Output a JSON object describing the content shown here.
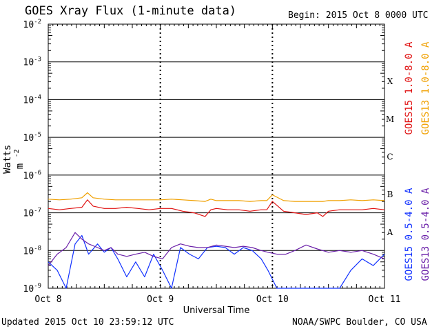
{
  "header": {
    "title": "GOES Xray Flux (1-minute data)",
    "begin": "Begin:  2015 Oct 8 0000 UTC"
  },
  "footer": {
    "updated": "Updated 2015 Oct 10 23:59:12 UTC",
    "credit": "NOAA/SWPC Boulder, CO USA"
  },
  "chart_data": {
    "type": "line",
    "title": "GOES Xray Flux (1-minute data)",
    "xlabel": "Universal Time",
    "ylabel_text": "Watts m",
    "ylabel_exp": "-2",
    "y_scale": "log",
    "ylim": [
      1e-09,
      0.01
    ],
    "x_unit": "days since 2015 Oct 8 0000 UTC",
    "xlim": [
      0,
      3
    ],
    "x_ticks": [
      {
        "value": 0,
        "label": "Oct 8"
      },
      {
        "value": 1,
        "label": "Oct 9"
      },
      {
        "value": 2,
        "label": "Oct 10"
      },
      {
        "value": 3,
        "label": "Oct 11"
      }
    ],
    "y_ticks": [
      {
        "exp": -9,
        "mantissa": "10",
        "sup": "-9"
      },
      {
        "exp": -8,
        "mantissa": "10",
        "sup": "-8"
      },
      {
        "exp": -7,
        "mantissa": "10",
        "sup": "-7"
      },
      {
        "exp": -6,
        "mantissa": "10",
        "sup": "-6"
      },
      {
        "exp": -5,
        "mantissa": "10",
        "sup": "-5"
      },
      {
        "exp": -4,
        "mantissa": "10",
        "sup": "-4"
      },
      {
        "exp": -3,
        "mantissa": "10",
        "sup": "-3"
      },
      {
        "exp": -2,
        "mantissa": "10",
        "sup": "-2"
      }
    ],
    "flare_classes": [
      {
        "label": "A",
        "exp": -8
      },
      {
        "label": "B",
        "exp": -7
      },
      {
        "label": "C",
        "exp": -6
      },
      {
        "label": "M",
        "exp": -5
      },
      {
        "label": "X",
        "exp": -4
      }
    ],
    "grid": true,
    "legend_position": "right-vertical",
    "series": [
      {
        "name": "GOES15 1.0-8.0 A",
        "color": "#e01010",
        "x": [
          0,
          0.1,
          0.2,
          0.3,
          0.35,
          0.4,
          0.5,
          0.6,
          0.7,
          0.8,
          0.9,
          1.0,
          1.1,
          1.2,
          1.3,
          1.4,
          1.45,
          1.5,
          1.6,
          1.7,
          1.8,
          1.9,
          1.95,
          2.0,
          2.1,
          2.2,
          2.3,
          2.4,
          2.45,
          2.5,
          2.6,
          2.7,
          2.8,
          2.9,
          3.0
        ],
        "y": [
          1.3e-07,
          1.2e-07,
          1.3e-07,
          1.4e-07,
          2.2e-07,
          1.5e-07,
          1.3e-07,
          1.3e-07,
          1.4e-07,
          1.3e-07,
          1.2e-07,
          1.3e-07,
          1.3e-07,
          1.1e-07,
          1e-07,
          8e-08,
          1.2e-07,
          1.3e-07,
          1.2e-07,
          1.2e-07,
          1.1e-07,
          1.2e-07,
          1.2e-07,
          2e-07,
          1.1e-07,
          1e-07,
          9e-08,
          1e-07,
          8e-08,
          1.1e-07,
          1.2e-07,
          1.2e-07,
          1.2e-07,
          1.3e-07,
          1.2e-07
        ]
      },
      {
        "name": "GOES13 1.0-8.0 A",
        "color": "#f0a000",
        "x": [
          0,
          0.1,
          0.2,
          0.3,
          0.35,
          0.4,
          0.5,
          0.6,
          0.7,
          0.8,
          0.9,
          1.0,
          1.1,
          1.2,
          1.3,
          1.4,
          1.45,
          1.5,
          1.6,
          1.7,
          1.8,
          1.9,
          1.95,
          2.0,
          2.1,
          2.2,
          2.3,
          2.4,
          2.45,
          2.5,
          2.6,
          2.7,
          2.8,
          2.9,
          3.0
        ],
        "y": [
          2.3e-07,
          2.2e-07,
          2.3e-07,
          2.5e-07,
          3.4e-07,
          2.5e-07,
          2.3e-07,
          2.2e-07,
          2.2e-07,
          2.2e-07,
          2.2e-07,
          2.2e-07,
          2.3e-07,
          2.2e-07,
          2.1e-07,
          2e-07,
          2.3e-07,
          2.1e-07,
          2.1e-07,
          2.1e-07,
          2e-07,
          2.1e-07,
          2.1e-07,
          3e-07,
          2.1e-07,
          2e-07,
          2e-07,
          2e-07,
          2e-07,
          2.1e-07,
          2.1e-07,
          2.2e-07,
          2.1e-07,
          2.2e-07,
          2.1e-07
        ]
      },
      {
        "name": "GOES15 0.5-4.0 A",
        "color": "#1030ff",
        "x": [
          0,
          0.08,
          0.16,
          0.24,
          0.3,
          0.36,
          0.44,
          0.5,
          0.56,
          0.62,
          0.7,
          0.78,
          0.86,
          0.94,
          1.02,
          1.1,
          1.18,
          1.26,
          1.34,
          1.42,
          1.5,
          1.58,
          1.66,
          1.74,
          1.82,
          1.9,
          1.96,
          2.04,
          2.12,
          2.2,
          2.3,
          2.4,
          2.5,
          2.6,
          2.7,
          2.8,
          2.9,
          3.0
        ],
        "y": [
          5e-09,
          3e-09,
          1e-09,
          1.5e-08,
          2.5e-08,
          8e-09,
          1.5e-08,
          9e-09,
          1.2e-08,
          6e-09,
          2e-09,
          5e-09,
          2e-09,
          8e-09,
          3e-09,
          1e-09,
          1.2e-08,
          8e-09,
          6e-09,
          1.2e-08,
          1.3e-08,
          1.2e-08,
          8e-09,
          1.2e-08,
          1e-08,
          6e-09,
          3e-09,
          1e-09,
          1e-09,
          1e-09,
          1e-09,
          1e-09,
          1e-09,
          1e-09,
          3e-09,
          6e-09,
          4e-09,
          8e-09
        ]
      },
      {
        "name": "GOES13 0.5-4.0 A",
        "color": "#6a1fa8",
        "x": [
          0,
          0.08,
          0.16,
          0.24,
          0.3,
          0.36,
          0.44,
          0.5,
          0.56,
          0.62,
          0.7,
          0.78,
          0.86,
          0.94,
          1.02,
          1.1,
          1.18,
          1.26,
          1.34,
          1.42,
          1.5,
          1.58,
          1.66,
          1.74,
          1.82,
          1.9,
          1.96,
          2.04,
          2.12,
          2.2,
          2.3,
          2.4,
          2.5,
          2.6,
          2.7,
          2.8,
          2.9,
          3.0
        ],
        "y": [
          4e-09,
          8e-09,
          1.2e-08,
          3e-08,
          2e-08,
          1.5e-08,
          1.2e-08,
          1e-08,
          1.2e-08,
          8e-09,
          7e-09,
          8e-09,
          9e-09,
          7e-09,
          6e-09,
          1.2e-08,
          1.5e-08,
          1.3e-08,
          1.2e-08,
          1.2e-08,
          1.4e-08,
          1.3e-08,
          1.2e-08,
          1.3e-08,
          1.2e-08,
          1e-08,
          9e-09,
          8e-09,
          8e-09,
          1e-08,
          1.4e-08,
          1.1e-08,
          9e-09,
          1e-08,
          9e-09,
          1e-08,
          8e-09,
          6e-09
        ]
      }
    ]
  }
}
